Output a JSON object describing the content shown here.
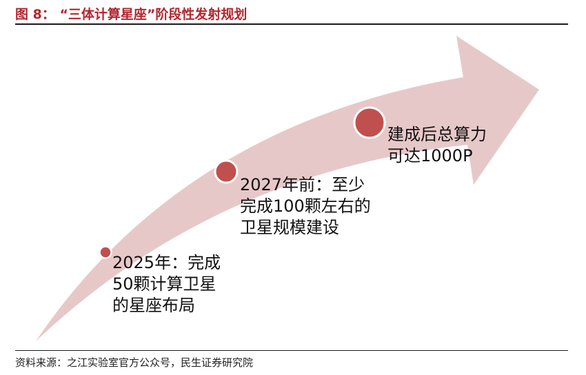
{
  "figure": {
    "title": "图 8：  “三体计算星座”阶段性发射规划"
  },
  "colors": {
    "title": "#b3262e",
    "arrow_fill": "#e7c8c9",
    "dot_fill": "#c0504d",
    "dot_ring": "#ffffff"
  },
  "milestones": [
    {
      "text": "2025年：完成50颗计算卫星的星座布局"
    },
    {
      "text": "2027年前：至少完成100颗左右的卫星规模建设"
    },
    {
      "text": "建成后总算力可达1000P"
    }
  ],
  "source": "资料来源：之江实验室官方公众号，民生证券研究院"
}
